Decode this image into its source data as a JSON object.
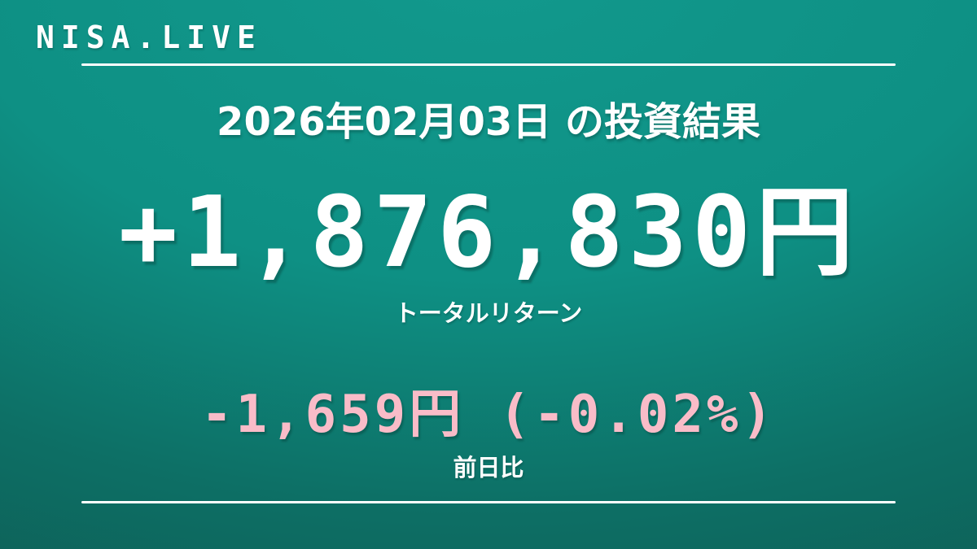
{
  "brand": {
    "logo": "NISA.LIVE"
  },
  "header": {
    "title": "2026年02月03日 の投資結果"
  },
  "total_return": {
    "value": "+1,876,830円",
    "label": "トータルリターン"
  },
  "daily_change": {
    "value": "-1,659円 (-0.02%)",
    "label": "前日比"
  },
  "colors": {
    "background_top": "#12998d",
    "background_mid": "#0e9084",
    "background_bottom": "#0e5a52",
    "text_primary": "#ffffff",
    "negative_pink": "#f9bcc8",
    "divider": "#ffffff"
  }
}
